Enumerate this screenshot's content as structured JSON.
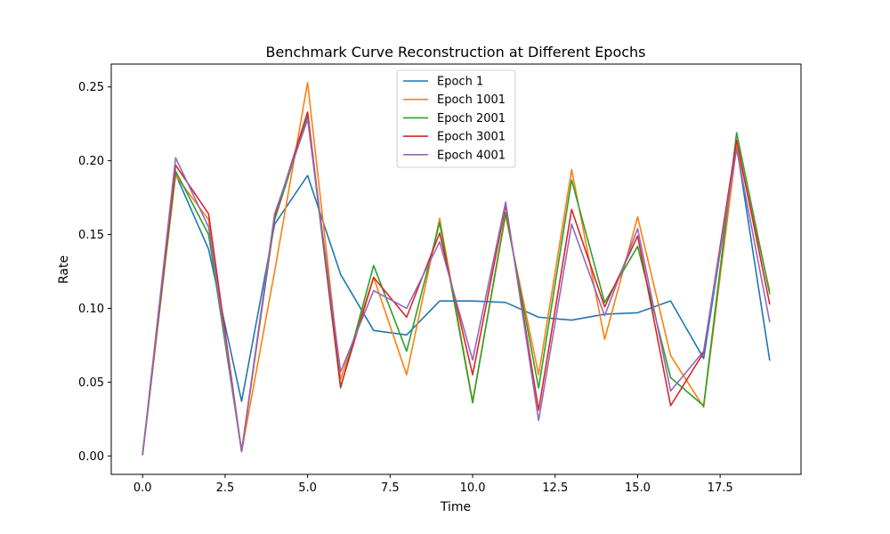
{
  "chart_data": {
    "type": "line",
    "title": "Benchmark Curve Reconstruction at Different Epochs",
    "xlabel": "Time",
    "ylabel": "Rate",
    "xlim": [
      -0.95,
      19.95
    ],
    "ylim": [
      -0.0125,
      0.2655
    ],
    "xticks": [
      0.0,
      2.5,
      5.0,
      7.5,
      10.0,
      12.5,
      15.0,
      17.5
    ],
    "xtick_labels": [
      "0.0",
      "2.5",
      "5.0",
      "7.5",
      "10.0",
      "12.5",
      "15.0",
      "17.5"
    ],
    "yticks": [
      0.0,
      0.05,
      0.1,
      0.15,
      0.2,
      0.25
    ],
    "ytick_labels": [
      "0.00",
      "0.05",
      "0.10",
      "0.15",
      "0.20",
      "0.25"
    ],
    "grid": false,
    "legend_position": "top-center",
    "x": [
      0,
      1,
      2,
      3,
      4,
      5,
      6,
      7,
      8,
      9,
      10,
      11,
      12,
      13,
      14,
      15,
      16,
      17,
      18,
      19
    ],
    "series": [
      {
        "name": "Epoch 1",
        "color": "#1f77b4",
        "values": [
          0.001,
          0.191,
          0.14,
          0.037,
          0.157,
          0.19,
          0.123,
          0.085,
          0.082,
          0.105,
          0.105,
          0.104,
          0.094,
          0.092,
          0.096,
          0.097,
          0.105,
          0.066,
          0.21,
          0.065
        ]
      },
      {
        "name": "Epoch 1001",
        "color": "#ff7f0e",
        "values": [
          0.001,
          0.19,
          0.16,
          0.003,
          0.125,
          0.253,
          0.052,
          0.121,
          0.055,
          0.161,
          0.037,
          0.163,
          0.055,
          0.194,
          0.079,
          0.162,
          0.068,
          0.033,
          0.21,
          0.112
        ]
      },
      {
        "name": "Epoch 2001",
        "color": "#2ca02c",
        "values": [
          0.001,
          0.193,
          0.15,
          0.003,
          0.16,
          0.23,
          0.046,
          0.129,
          0.071,
          0.158,
          0.036,
          0.165,
          0.046,
          0.187,
          0.104,
          0.142,
          0.053,
          0.034,
          0.219,
          0.11
        ]
      },
      {
        "name": "Epoch 3001",
        "color": "#d62728",
        "values": [
          0.001,
          0.197,
          0.164,
          0.003,
          0.162,
          0.233,
          0.047,
          0.121,
          0.094,
          0.151,
          0.055,
          0.17,
          0.031,
          0.167,
          0.101,
          0.149,
          0.034,
          0.07,
          0.214,
          0.103
        ]
      },
      {
        "name": "Epoch 4001",
        "color": "#9467bd",
        "values": [
          0.001,
          0.202,
          0.155,
          0.003,
          0.164,
          0.228,
          0.057,
          0.112,
          0.1,
          0.145,
          0.065,
          0.172,
          0.024,
          0.157,
          0.095,
          0.154,
          0.044,
          0.071,
          0.208,
          0.091
        ]
      }
    ]
  }
}
